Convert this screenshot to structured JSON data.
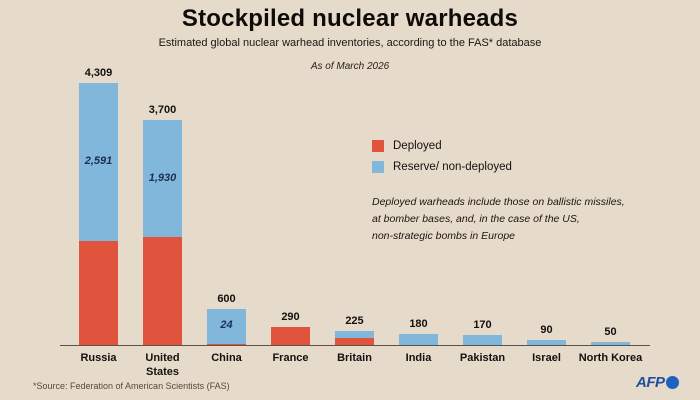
{
  "header": {
    "title": "Stockpiled nuclear warheads",
    "subtitle": "Estimated global nuclear warhead inventories, according to the FAS* database",
    "as_of": "As of March 2026"
  },
  "footer": {
    "source": "*Source: Federation of American Scientists (FAS)",
    "logo_text": "AFP"
  },
  "colors": {
    "background": "#e6dacb",
    "deployed": "#e0533d",
    "reserve": "#82b7dc",
    "inside_label": "#1c2f52",
    "afp_blue": "#1e4fa1"
  },
  "chart_data": {
    "type": "bar",
    "stacked": true,
    "title": "Stockpiled nuclear warheads",
    "subtitle": "Estimated global nuclear warhead inventories, according to the FAS* database",
    "annotation_as_of": "As of March 2026",
    "note": "Deployed warheads include those on ballistic missiles,\nat bomber bases, and, in the case of the US,\nnon-strategic bombs in Europe",
    "legend_position": "middle-right",
    "grid": false,
    "ylim": [
      0,
      4309
    ],
    "categories": [
      "Russia",
      "United States",
      "China",
      "France",
      "Britain",
      "India",
      "Pakistan",
      "Israel",
      "North Korea"
    ],
    "axis_labels": [
      "Russia",
      "United\nStates",
      "China",
      "France",
      "Britain",
      "India",
      "Pakistan",
      "Israel",
      "North Korea"
    ],
    "totals": [
      4309,
      3700,
      600,
      290,
      225,
      180,
      170,
      90,
      50
    ],
    "total_labels": [
      "4,309",
      "3,700",
      "600",
      "290",
      "225",
      "180",
      "170",
      "90",
      "50"
    ],
    "series": [
      {
        "name": "Deployed",
        "color": "#e0533d",
        "values": [
          1718,
          1770,
          24,
          290,
          120,
          0,
          0,
          0,
          0
        ]
      },
      {
        "name": "Reserve/ non-deployed",
        "color": "#82b7dc",
        "values": [
          2591,
          1930,
          576,
          0,
          105,
          180,
          170,
          90,
          50
        ]
      }
    ],
    "inside_labels": [
      "2,591",
      "1,930",
      "24",
      "",
      "",
      "",
      "",
      "",
      ""
    ],
    "legend": [
      {
        "label": "Deployed",
        "color": "#e0533d"
      },
      {
        "label": "Reserve/ non-deployed",
        "color": "#82b7dc"
      }
    ]
  }
}
